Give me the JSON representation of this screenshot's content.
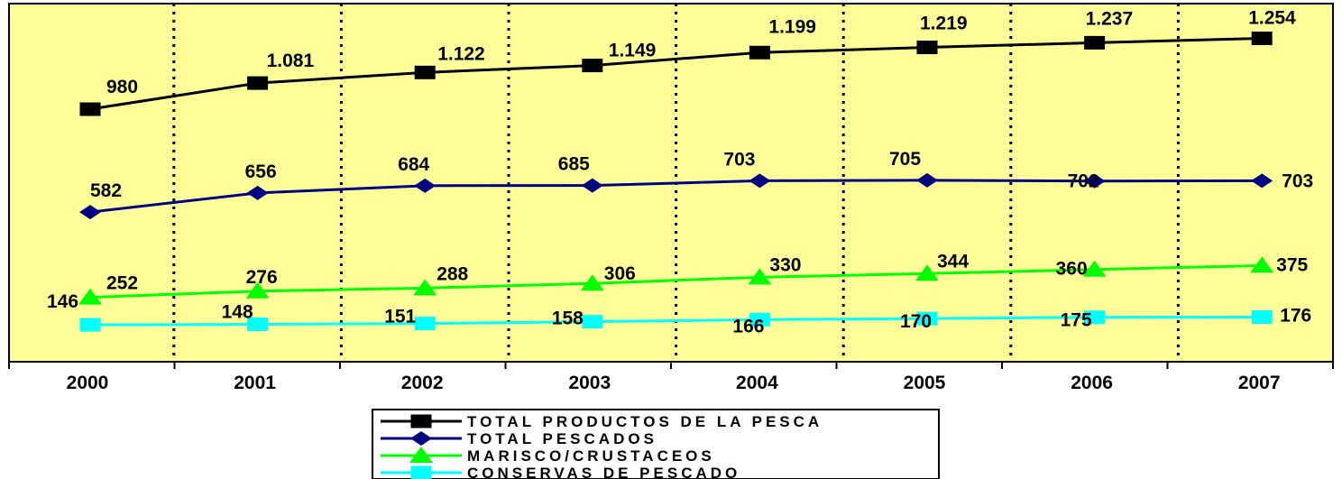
{
  "chart_data": {
    "type": "line",
    "title": "",
    "xlabel": "",
    "ylabel": "",
    "categories": [
      "2000",
      "2001",
      "2002",
      "2003",
      "2004",
      "2005",
      "2006",
      "2007"
    ],
    "ylim": [
      0,
      1300
    ],
    "grid": "vertical dotted",
    "legend_position": "bottom",
    "plot_background": "#ffff99",
    "series": [
      {
        "name": "TOTAL PRODUCTOS DE LA PESCA",
        "color": "#000000",
        "marker": "square",
        "values": [
          980,
          1081,
          1122,
          1149,
          1199,
          1219,
          1237,
          1254
        ],
        "labels": [
          "980",
          "1.081",
          "1.122",
          "1.149",
          "1.199",
          "1.219",
          "1.237",
          "1.254"
        ]
      },
      {
        "name": "TOTAL PESCADOS",
        "color": "#000080",
        "marker": "diamond",
        "values": [
          582,
          656,
          684,
          685,
          703,
          705,
          702,
          703
        ],
        "labels": [
          "582",
          "656",
          "684",
          "685",
          "703",
          "705",
          "702",
          "703"
        ]
      },
      {
        "name": "MARISCO/CRUSTACEOS",
        "color": "#00ff00",
        "marker": "triangle",
        "values": [
          252,
          276,
          288,
          306,
          330,
          344,
          360,
          375
        ],
        "labels": [
          "252",
          "276",
          "288",
          "306",
          "330",
          "344",
          "360",
          "375"
        ]
      },
      {
        "name": "CONSERVAS DE PESCADO",
        "color": "#00ffff",
        "marker": "square",
        "values": [
          146,
          148,
          151,
          158,
          166,
          170,
          175,
          176
        ],
        "labels": [
          "146",
          "148",
          "151",
          "158",
          "166",
          "170",
          "175",
          "176"
        ]
      }
    ]
  }
}
